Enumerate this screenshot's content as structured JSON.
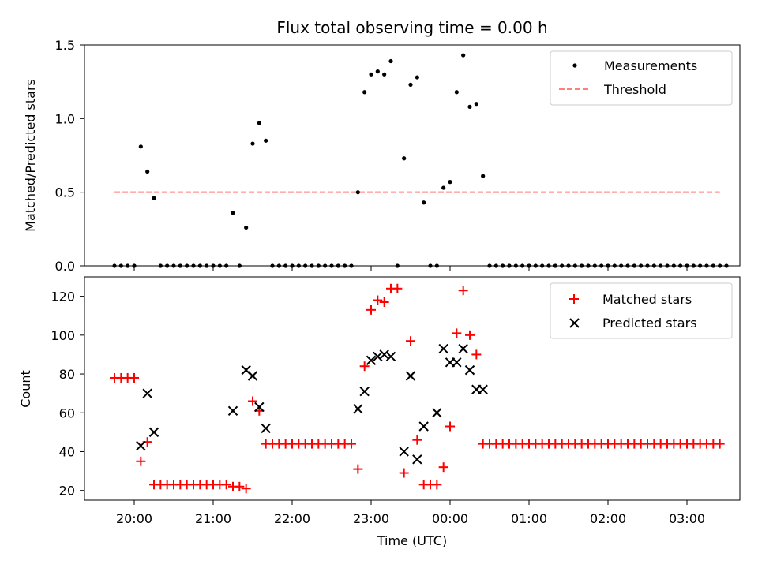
{
  "chart_data": [
    {
      "type": "scatter",
      "title": "Flux total observing time = 0.00 h",
      "xlabel": "",
      "ylabel": "Matched/Predicted stars",
      "ylim": [
        0,
        1.5
      ],
      "yticks": [
        "0.0",
        "0.5",
        "1.0",
        "1.5"
      ],
      "legend": "top-right",
      "grid": false,
      "series": [
        {
          "name": "Measurements",
          "kind": "points",
          "color": "#000000",
          "x": [
            "19:45",
            "19:50",
            "19:55",
            "20:00",
            "20:05",
            "20:10",
            "20:15",
            "20:20",
            "20:25",
            "20:30",
            "20:35",
            "20:40",
            "20:45",
            "20:50",
            "20:55",
            "21:00",
            "21:05",
            "21:10",
            "21:15",
            "21:20",
            "21:25",
            "21:30",
            "21:35",
            "21:40",
            "21:45",
            "21:50",
            "21:55",
            "22:00",
            "22:05",
            "22:10",
            "22:15",
            "22:20",
            "22:25",
            "22:30",
            "22:35",
            "22:40",
            "22:45",
            "22:50",
            "22:55",
            "23:00",
            "23:05",
            "23:10",
            "23:15",
            "23:20",
            "23:25",
            "23:30",
            "23:35",
            "23:40",
            "23:45",
            "23:50",
            "23:55",
            "00:00",
            "00:05",
            "00:10",
            "00:15",
            "00:20",
            "00:25",
            "00:30",
            "00:35",
            "00:40",
            "00:45",
            "00:50",
            "00:55",
            "01:00",
            "01:05",
            "01:10",
            "01:15",
            "01:20",
            "01:25",
            "01:30",
            "01:35",
            "01:40",
            "01:45",
            "01:50",
            "01:55",
            "02:00",
            "02:05",
            "02:10",
            "02:15",
            "02:20",
            "02:25",
            "02:30",
            "02:35",
            "02:40",
            "02:45",
            "02:50",
            "02:55",
            "03:00",
            "03:05",
            "03:10",
            "03:15",
            "03:20",
            "03:25",
            "03:30"
          ],
          "y": [
            0,
            0,
            0,
            0,
            0.81,
            0.64,
            0.46,
            0,
            0,
            0,
            0,
            0,
            0,
            0,
            0,
            0,
            0,
            0,
            0.36,
            0,
            0.26,
            0.83,
            0.97,
            0.85,
            0,
            0,
            0,
            0,
            0,
            0,
            0,
            0,
            0,
            0,
            0,
            0,
            0,
            0.5,
            1.18,
            1.3,
            1.32,
            1.3,
            1.39,
            0,
            0.73,
            1.23,
            1.28,
            0.43,
            0,
            0,
            0.53,
            0.57,
            1.18,
            1.43,
            1.08,
            1.1,
            0.61,
            0,
            0,
            0,
            0,
            0,
            0,
            0,
            0,
            0,
            0,
            0,
            0,
            0,
            0,
            0,
            0,
            0,
            0,
            0,
            0,
            0,
            0,
            0,
            0,
            0,
            0,
            0,
            0,
            0,
            0,
            0,
            0,
            0,
            0,
            0,
            0,
            0
          ]
        },
        {
          "name": "Threshold",
          "kind": "dashed-line",
          "color": "#ff7f7f",
          "x": [
            "19:45",
            "03:25"
          ],
          "y": [
            0.5,
            0.5
          ]
        }
      ]
    },
    {
      "type": "scatter",
      "title": "",
      "xlabel": "Time (UTC)",
      "ylabel": "Count",
      "ylim": [
        15,
        130
      ],
      "yticks": [
        "20",
        "40",
        "60",
        "80",
        "100",
        "120"
      ],
      "xticks": [
        "20:00",
        "21:00",
        "22:00",
        "23:00",
        "00:00",
        "01:00",
        "02:00",
        "03:00"
      ],
      "legend": "top-right",
      "grid": false,
      "series": [
        {
          "name": "Matched stars",
          "marker": "plus",
          "color": "#ff0000",
          "x": [
            "19:45",
            "19:50",
            "19:55",
            "20:00",
            "20:05",
            "20:10",
            "20:15",
            "20:20",
            "20:25",
            "20:30",
            "20:35",
            "20:40",
            "20:45",
            "20:50",
            "20:55",
            "21:00",
            "21:05",
            "21:10",
            "21:15",
            "21:20",
            "21:25",
            "21:30",
            "21:35",
            "21:40",
            "21:45",
            "21:50",
            "21:55",
            "22:00",
            "22:05",
            "22:10",
            "22:15",
            "22:20",
            "22:25",
            "22:30",
            "22:35",
            "22:40",
            "22:45",
            "22:50",
            "22:55",
            "23:00",
            "23:05",
            "23:10",
            "23:15",
            "23:20",
            "23:25",
            "23:30",
            "23:35",
            "23:40",
            "23:45",
            "23:50",
            "23:55",
            "00:00",
            "00:05",
            "00:10",
            "00:15",
            "00:20",
            "00:25",
            "00:30",
            "00:35",
            "00:40",
            "00:45",
            "00:50",
            "00:55",
            "01:00",
            "01:05",
            "01:10",
            "01:15",
            "01:20",
            "01:25",
            "01:30",
            "01:35",
            "01:40",
            "01:45",
            "01:50",
            "01:55",
            "02:00",
            "02:05",
            "02:10",
            "02:15",
            "02:20",
            "02:25",
            "02:30",
            "02:35",
            "02:40",
            "02:45",
            "02:50",
            "02:55",
            "03:00",
            "03:05",
            "03:10",
            "03:15",
            "03:20",
            "03:25"
          ],
          "y": [
            78,
            78,
            78,
            78,
            35,
            45,
            23,
            23,
            23,
            23,
            23,
            23,
            23,
            23,
            23,
            23,
            23,
            23,
            22,
            22,
            21,
            66,
            61,
            44,
            44,
            44,
            44,
            44,
            44,
            44,
            44,
            44,
            44,
            44,
            44,
            44,
            44,
            31,
            84,
            113,
            118,
            117,
            124,
            124,
            29,
            97,
            46,
            23,
            23,
            23,
            32,
            53,
            101,
            123,
            100,
            90,
            44,
            44,
            44,
            44,
            44,
            44,
            44,
            44,
            44,
            44,
            44,
            44,
            44,
            44,
            44,
            44,
            44,
            44,
            44,
            44,
            44,
            44,
            44,
            44,
            44,
            44,
            44,
            44,
            44,
            44,
            44,
            44,
            44,
            44,
            44,
            44,
            44
          ]
        },
        {
          "name": "Predicted stars",
          "marker": "x",
          "color": "#000000",
          "x": [
            "20:05",
            "20:10",
            "20:15",
            "21:15",
            "21:25",
            "21:30",
            "21:35",
            "21:40",
            "22:50",
            "22:55",
            "23:00",
            "23:05",
            "23:10",
            "23:15",
            "23:25",
            "23:30",
            "23:35",
            "23:40",
            "23:50",
            "23:55",
            "00:00",
            "00:05",
            "00:10",
            "00:15",
            "00:20",
            "00:25"
          ],
          "y": [
            43,
            70,
            50,
            61,
            82,
            79,
            63,
            52,
            62,
            71,
            87,
            89,
            90,
            89,
            40,
            79,
            36,
            53,
            60,
            93,
            86,
            86,
            93,
            82,
            72,
            72
          ]
        }
      ]
    }
  ]
}
